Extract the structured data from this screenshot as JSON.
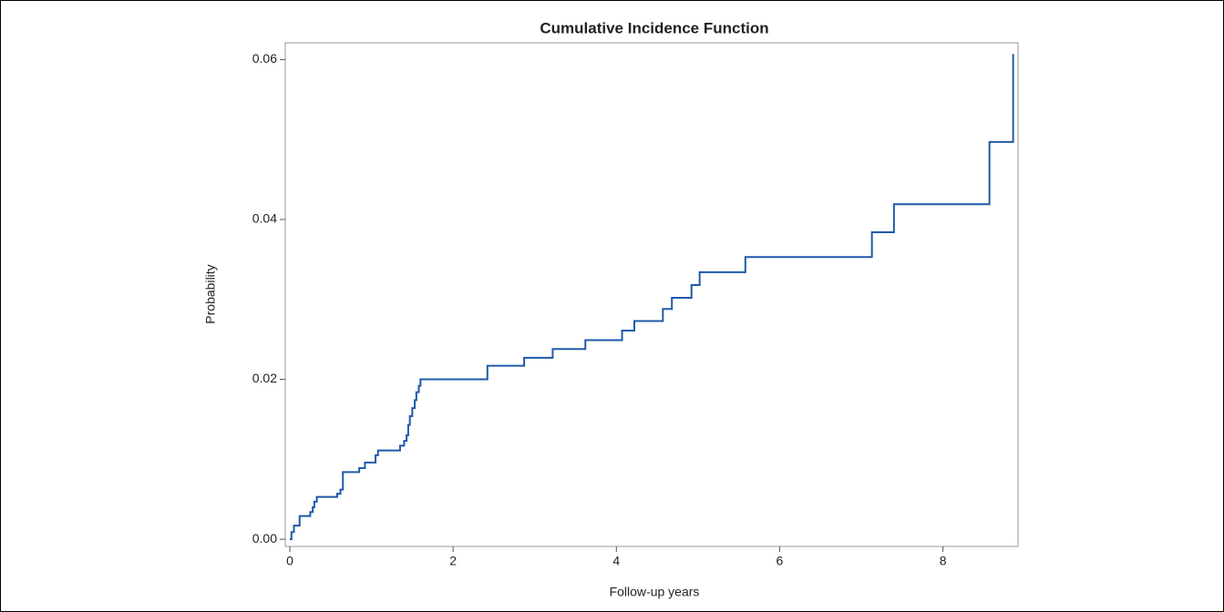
{
  "chart_data": {
    "type": "line",
    "step": "post",
    "title": "Cumulative Incidence Function",
    "x_label": "Follow-up years",
    "y_label": "Probability",
    "x": [
      0,
      0.02,
      0.05,
      0.12,
      0.25,
      0.28,
      0.3,
      0.33,
      0.58,
      0.62,
      0.65,
      0.85,
      0.92,
      1.05,
      1.08,
      1.35,
      1.4,
      1.43,
      1.45,
      1.47,
      1.5,
      1.53,
      1.55,
      1.58,
      1.6,
      2.42,
      2.87,
      3.22,
      3.62,
      4.07,
      4.22,
      4.57,
      4.68,
      4.92,
      5.02,
      5.58,
      7.13,
      7.4,
      8.57,
      8.86
    ],
    "series": [
      {
        "name": "CIF",
        "color": "#1f5aa8",
        "values": [
          0,
          0.0009,
          0.0017,
          0.0029,
          0.0034,
          0.004,
          0.0047,
          0.0053,
          0.0057,
          0.0062,
          0.0084,
          0.0089,
          0.0096,
          0.0105,
          0.0111,
          0.0117,
          0.0123,
          0.013,
          0.0143,
          0.0154,
          0.0164,
          0.0174,
          0.0184,
          0.0192,
          0.02,
          0.0217,
          0.0227,
          0.0238,
          0.0249,
          0.0261,
          0.0273,
          0.0288,
          0.0302,
          0.0318,
          0.0334,
          0.0353,
          0.0384,
          0.0419,
          0.0497,
          0.0607
        ]
      }
    ],
    "xlim": [
      -0.056,
      8.92
    ],
    "ylim": [
      -0.0009,
      0.0621
    ],
    "xticks": [
      0,
      2,
      4,
      6,
      8
    ],
    "yticks": [
      {
        "value": 0,
        "label": "0.00"
      },
      0.02,
      0.04,
      0.06
    ],
    "grid": false
  }
}
